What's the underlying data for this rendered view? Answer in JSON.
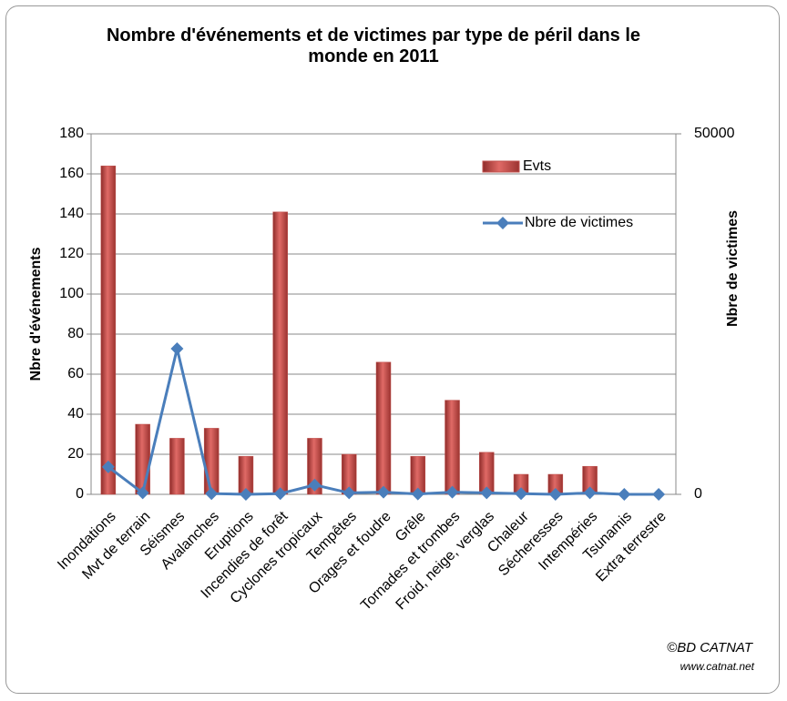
{
  "chart_data": {
    "type": "bar_line",
    "title": "Nombre d'événements et de victimes par type de péril dans le monde en 2011",
    "ylabel": "Nbre d'événements",
    "y2label": "Nbre de victimes",
    "categories": [
      "Inondations",
      "Mvt de terrain",
      "Séismes",
      "Avalanches",
      "Eruptions",
      "Incendies de forêt",
      "Cyclones tropicaux",
      "Tempêtes",
      "Orages et foudre",
      "Grêle",
      "Tornades et trombes",
      "Froid, neige, verglas",
      "Chaleur",
      "Sécheresses",
      "Intempéries",
      "Tsunamis",
      "Extra terrestre"
    ],
    "series": [
      {
        "name": "Evts",
        "type": "bar",
        "color": "#c0504d",
        "values": [
          164,
          35,
          28,
          33,
          19,
          141,
          28,
          20,
          66,
          19,
          47,
          21,
          10,
          10,
          14,
          0,
          0
        ]
      },
      {
        "name": "Nbre de victimes",
        "type": "line",
        "axis": "y2",
        "color": "#4a7ebb",
        "values": [
          3800,
          200,
          20200,
          100,
          0,
          100,
          1300,
          200,
          300,
          50,
          300,
          200,
          100,
          0,
          200,
          0,
          0
        ]
      }
    ],
    "ylim": [
      0,
      180
    ],
    "yticks": [
      0,
      20,
      40,
      60,
      80,
      100,
      120,
      140,
      160,
      180
    ],
    "y2lim": [
      0,
      50000
    ],
    "y2ticks": [
      0,
      50000
    ],
    "grid": true,
    "legend": "upper right",
    "annotations": [
      "©BD CATNAT",
      "www.catnat.net"
    ]
  }
}
